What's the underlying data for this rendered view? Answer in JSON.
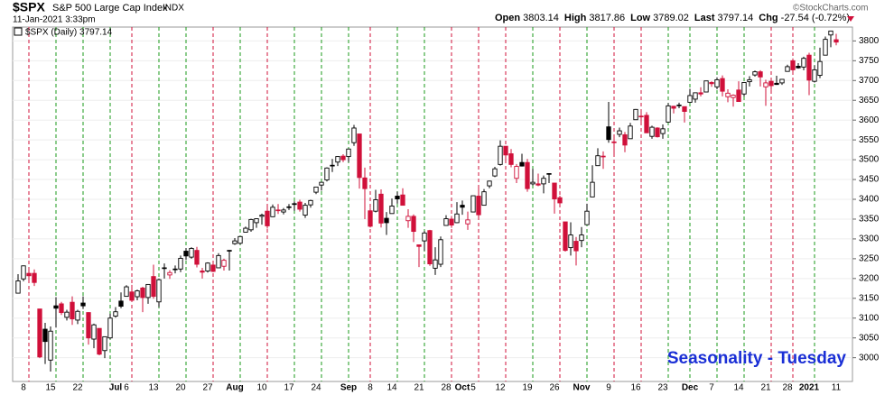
{
  "chart_data": {
    "type": "candlestick",
    "symbol": "$SPX",
    "name": "S&P 500 Large Cap Index",
    "exchange": "INDX",
    "timestamp": "11-Jan-2021 3:33pm",
    "quote": [
      {
        "name": "Open",
        "value": "3803.14"
      },
      {
        "name": "High",
        "value": "3817.86"
      },
      {
        "name": "Low",
        "value": "3789.02"
      },
      {
        "name": "Last",
        "value": "3797.14"
      },
      {
        "name": "Chg",
        "value": "-27.54 (-0.72%)"
      }
    ],
    "credit": "©StockCharts.com",
    "legend": "$SPX (Daily) 3797.14",
    "annotation": "Seasonality - Tuesday",
    "up_color": "#000000",
    "down_color": "#d0103a",
    "line_up_color": "#1a9a1a",
    "line_down_color": "#d0103a",
    "grid": true,
    "ylim": [
      2940,
      3835
    ],
    "yticks": [
      3000,
      3050,
      3100,
      3150,
      3200,
      3250,
      3300,
      3350,
      3400,
      3450,
      3500,
      3550,
      3600,
      3650,
      3700,
      3750,
      3800
    ],
    "categories": [
      null,
      "8",
      null,
      null,
      null,
      null,
      "15",
      null,
      null,
      null,
      null,
      "22",
      null,
      null,
      null,
      null,
      null,
      null,
      "Jul",
      null,
      "6",
      null,
      null,
      null,
      null,
      "13",
      null,
      null,
      null,
      null,
      "20",
      null,
      null,
      null,
      null,
      "27",
      null,
      null,
      null,
      null,
      "Aug",
      null,
      null,
      null,
      null,
      "10",
      null,
      null,
      null,
      null,
      "17",
      null,
      null,
      null,
      null,
      "24",
      null,
      null,
      null,
      null,
      null,
      "Sep",
      null,
      null,
      null,
      "8",
      null,
      null,
      null,
      "14",
      null,
      null,
      null,
      null,
      "21",
      null,
      null,
      null,
      null,
      "28",
      null,
      null,
      "Oct",
      null,
      "5",
      null,
      null,
      null,
      null,
      "12",
      null,
      null,
      null,
      null,
      "19",
      null,
      null,
      null,
      null,
      "26",
      null,
      null,
      null,
      null,
      "Nov",
      null,
      null,
      null,
      null,
      "9",
      null,
      null,
      null,
      null,
      "16",
      null,
      null,
      null,
      null,
      "23",
      null,
      null,
      null,
      null,
      "Dec",
      null,
      null,
      null,
      "7",
      null,
      null,
      null,
      null,
      "14",
      null,
      null,
      null,
      null,
      "21",
      null,
      null,
      null,
      "28",
      null,
      null,
      null,
      "2021",
      null,
      null,
      null,
      null,
      "11"
    ],
    "tuesdays": [
      2,
      7,
      12,
      17,
      21,
      26,
      31,
      36,
      41,
      46,
      51,
      56,
      61,
      65,
      70,
      75,
      80,
      85,
      90,
      95,
      100,
      105,
      110,
      115,
      120,
      124,
      129,
      134,
      139,
      143,
      147
    ],
    "ohlc": [
      [
        3163,
        3211,
        3163,
        3194
      ],
      [
        3199,
        3233,
        3193,
        3232
      ],
      [
        3213,
        3223,
        3193,
        3207
      ],
      [
        3213,
        3223,
        3181,
        3190
      ],
      [
        3123,
        3123,
        2999,
        3002
      ],
      [
        3072,
        3088,
        2984,
        3041
      ],
      [
        2994,
        3079,
        2965,
        3067
      ],
      [
        3131,
        3153,
        3076,
        3125
      ],
      [
        3136,
        3141,
        3108,
        3114
      ],
      [
        3102,
        3121,
        3094,
        3115
      ],
      [
        3140,
        3155,
        3083,
        3098
      ],
      [
        3095,
        3121,
        3085,
        3117
      ],
      [
        3138,
        3155,
        3123,
        3131
      ],
      [
        3114,
        3115,
        3033,
        3050
      ],
      [
        3047,
        3086,
        3024,
        3083
      ],
      [
        3074,
        3074,
        3006,
        3009
      ],
      [
        3018,
        3053,
        2999,
        3053
      ],
      [
        3050,
        3111,
        3047,
        3100
      ],
      [
        3105,
        3128,
        3101,
        3116
      ],
      [
        3143,
        3165,
        3125,
        3130
      ],
      [
        3155,
        3183,
        3155,
        3179
      ],
      [
        3166,
        3184,
        3143,
        3145
      ],
      [
        3154,
        3172,
        3145,
        3169
      ],
      [
        3176,
        3179,
        3115,
        3152
      ],
      [
        3152,
        3186,
        3136,
        3185
      ],
      [
        3205,
        3235,
        3149,
        3155
      ],
      [
        3141,
        3200,
        3128,
        3197
      ],
      [
        3226,
        3238,
        3200,
        3227
      ],
      [
        3209,
        3221,
        3199,
        3215
      ],
      [
        3224,
        3233,
        3213,
        3224
      ],
      [
        3224,
        3258,
        3216,
        3251
      ],
      [
        3269,
        3277,
        3247,
        3257
      ],
      [
        3254,
        3279,
        3250,
        3276
      ],
      [
        3271,
        3280,
        3228,
        3236
      ],
      [
        3219,
        3227,
        3200,
        3216
      ],
      [
        3219,
        3241,
        3215,
        3239
      ],
      [
        3234,
        3243,
        3216,
        3218
      ],
      [
        3227,
        3264,
        3227,
        3258
      ],
      [
        3231,
        3250,
        3220,
        3246
      ],
      [
        3270,
        3272,
        3220,
        3271
      ],
      [
        3288,
        3302,
        3285,
        3295
      ],
      [
        3289,
        3306,
        3286,
        3306
      ],
      [
        3317,
        3331,
        3318,
        3327
      ],
      [
        3323,
        3351,
        3318,
        3349
      ],
      [
        3341,
        3352,
        3328,
        3351
      ],
      [
        3357,
        3364,
        3336,
        3360
      ],
      [
        3370,
        3381,
        3326,
        3333
      ],
      [
        3356,
        3387,
        3355,
        3380
      ],
      [
        3372,
        3388,
        3363,
        3373
      ],
      [
        3368,
        3378,
        3362,
        3373
      ],
      [
        3380,
        3388,
        3373,
        3381
      ],
      [
        3387,
        3395,
        3371,
        3389
      ],
      [
        3393,
        3399,
        3369,
        3375
      ],
      [
        3360,
        3391,
        3353,
        3385
      ],
      [
        3386,
        3399,
        3379,
        3397
      ],
      [
        3418,
        3432,
        3413,
        3431
      ],
      [
        3436,
        3444,
        3422,
        3443
      ],
      [
        3449,
        3481,
        3445,
        3479
      ],
      [
        3486,
        3502,
        3469,
        3485
      ],
      [
        3494,
        3509,
        3484,
        3508
      ],
      [
        3509,
        3514,
        3494,
        3500
      ],
      [
        3508,
        3528,
        3494,
        3527
      ],
      [
        3543,
        3588,
        3535,
        3580
      ],
      [
        3565,
        3565,
        3427,
        3455
      ],
      [
        3454,
        3480,
        3350,
        3427
      ],
      [
        3371,
        3379,
        3329,
        3332
      ],
      [
        3370,
        3424,
        3367,
        3399
      ],
      [
        3413,
        3425,
        3329,
        3340
      ],
      [
        3352,
        3368,
        3310,
        3341
      ],
      [
        3364,
        3402,
        3364,
        3383
      ],
      [
        3408,
        3419,
        3389,
        3401
      ],
      [
        3411,
        3428,
        3384,
        3385
      ],
      [
        3346,
        3375,
        3328,
        3357
      ],
      [
        3357,
        3362,
        3292,
        3319
      ],
      [
        3285,
        3285,
        3229,
        3281
      ],
      [
        3295,
        3320,
        3270,
        3315
      ],
      [
        3321,
        3323,
        3232,
        3237
      ],
      [
        3226,
        3279,
        3209,
        3247
      ],
      [
        3236,
        3306,
        3229,
        3298
      ],
      [
        3334,
        3360,
        3333,
        3351
      ],
      [
        3350,
        3358,
        3328,
        3335
      ],
      [
        3341,
        3393,
        3340,
        3363
      ],
      [
        3385,
        3397,
        3361,
        3380
      ],
      [
        3338,
        3369,
        3323,
        3348
      ],
      [
        3368,
        3409,
        3367,
        3409
      ],
      [
        3408,
        3432,
        3354,
        3361
      ],
      [
        3385,
        3426,
        3385,
        3419
      ],
      [
        3434,
        3447,
        3428,
        3446
      ],
      [
        3459,
        3482,
        3456,
        3477
      ],
      [
        3488,
        3549,
        3485,
        3534
      ],
      [
        3534,
        3534,
        3500,
        3512
      ],
      [
        3515,
        3527,
        3481,
        3488
      ],
      [
        3453,
        3489,
        3441,
        3483
      ],
      [
        3493,
        3515,
        3483,
        3484
      ],
      [
        3493,
        3502,
        3419,
        3427
      ],
      [
        3439,
        3477,
        3435,
        3443
      ],
      [
        3439,
        3465,
        3433,
        3436
      ],
      [
        3439,
        3460,
        3415,
        3453
      ],
      [
        3464,
        3466,
        3441,
        3465
      ],
      [
        3441,
        3441,
        3364,
        3401
      ],
      [
        3404,
        3409,
        3388,
        3391
      ],
      [
        3343,
        3343,
        3268,
        3271
      ],
      [
        3278,
        3342,
        3258,
        3310
      ],
      [
        3294,
        3305,
        3233,
        3270
      ],
      [
        3296,
        3330,
        3279,
        3310
      ],
      [
        3336,
        3389,
        3336,
        3370
      ],
      [
        3406,
        3486,
        3406,
        3443
      ],
      [
        3485,
        3529,
        3485,
        3510
      ],
      [
        3508,
        3521,
        3477,
        3509
      ],
      [
        3583,
        3646,
        3543,
        3551
      ],
      [
        3543,
        3557,
        3511,
        3545
      ],
      [
        3564,
        3581,
        3557,
        3573
      ],
      [
        3563,
        3570,
        3519,
        3537
      ],
      [
        3553,
        3593,
        3553,
        3585
      ],
      [
        3601,
        3628,
        3601,
        3627
      ],
      [
        3610,
        3624,
        3594,
        3610
      ],
      [
        3612,
        3620,
        3567,
        3568
      ],
      [
        3559,
        3586,
        3553,
        3582
      ],
      [
        3580,
        3582,
        3556,
        3558
      ],
      [
        3566,
        3589,
        3553,
        3578
      ],
      [
        3595,
        3643,
        3595,
        3636
      ],
      [
        3635,
        3636,
        3617,
        3630
      ],
      [
        3638,
        3644,
        3630,
        3638
      ],
      [
        3634,
        3634,
        3594,
        3622
      ],
      [
        3645,
        3679,
        3645,
        3662
      ],
      [
        3653,
        3670,
        3644,
        3669
      ],
      [
        3669,
        3683,
        3660,
        3666
      ],
      [
        3671,
        3699,
        3671,
        3699
      ],
      [
        3695,
        3698,
        3684,
        3692
      ],
      [
        3684,
        3708,
        3678,
        3702
      ],
      [
        3705,
        3713,
        3660,
        3673
      ],
      [
        3659,
        3678,
        3645,
        3668
      ],
      [
        3657,
        3665,
        3634,
        3663
      ],
      [
        3676,
        3698,
        3647,
        3647
      ],
      [
        3666,
        3695,
        3660,
        3695
      ],
      [
        3697,
        3711,
        3685,
        3702
      ],
      [
        3714,
        3725,
        3710,
        3722
      ],
      [
        3722,
        3726,
        3685,
        3709
      ],
      [
        3684,
        3702,
        3636,
        3694
      ],
      [
        3698,
        3698,
        3676,
        3687
      ],
      [
        3693,
        3712,
        3689,
        3690
      ],
      [
        3694,
        3703,
        3689,
        3703
      ],
      [
        3723,
        3740,
        3723,
        3735
      ],
      [
        3750,
        3756,
        3723,
        3727
      ],
      [
        3736,
        3744,
        3730,
        3732
      ],
      [
        3734,
        3760,
        3726,
        3756
      ],
      [
        3764,
        3770,
        3663,
        3701
      ],
      [
        3698,
        3738,
        3695,
        3727
      ],
      [
        3713,
        3783,
        3706,
        3748
      ],
      [
        3764,
        3811,
        3764,
        3804
      ],
      [
        3815,
        3826,
        3784,
        3825
      ],
      [
        3803,
        3818,
        3789,
        3797
      ]
    ]
  }
}
